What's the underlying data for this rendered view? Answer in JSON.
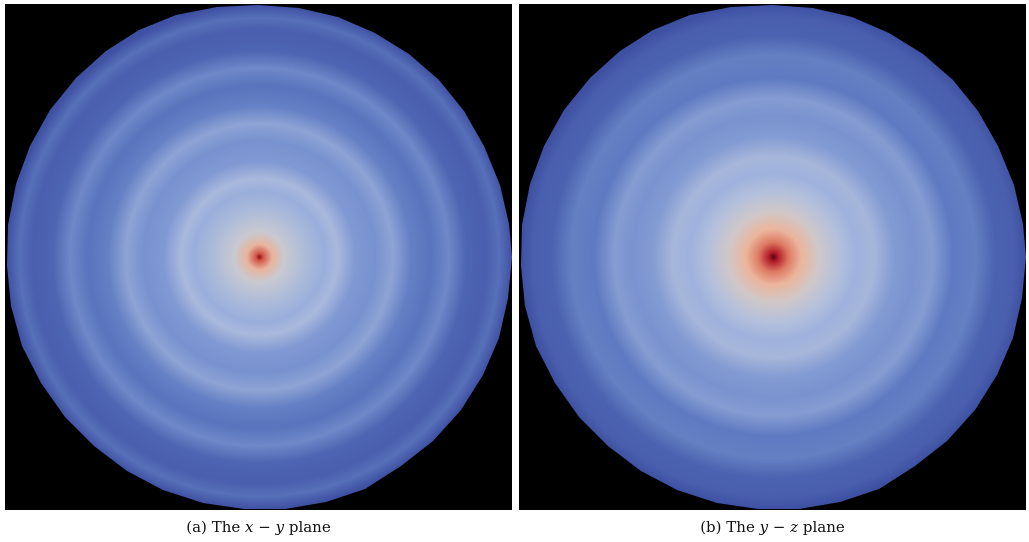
{
  "figure": {
    "panels": [
      {
        "id": "a",
        "caption_label": "(a)",
        "caption_prefix": "The",
        "caption_math": "x − y",
        "caption_suffix": "plane",
        "center_hotspot": "small"
      },
      {
        "id": "b",
        "caption_label": "(b)",
        "caption_prefix": "The",
        "caption_math": "y − z",
        "caption_suffix": "plane",
        "center_hotspot": "large"
      }
    ],
    "colors": {
      "background": "#000000",
      "outer_blue": "#3b4fa4",
      "mid_blue": "#6a86c8",
      "light_blue": "#9fb4dc",
      "pale": "#c9c9d0",
      "warm": "#e8a283",
      "hot": "#c0282a",
      "core": "#6e0010"
    }
  }
}
